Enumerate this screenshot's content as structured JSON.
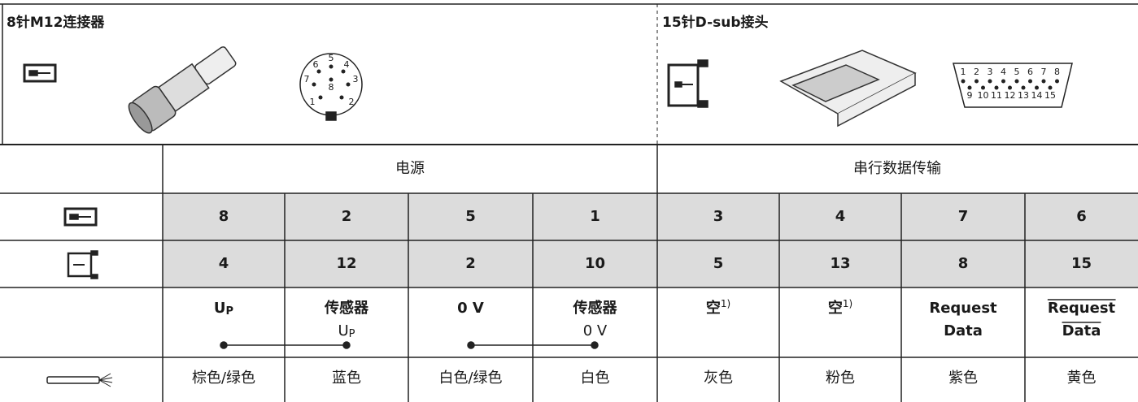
{
  "header": {
    "left_title": "8针M12连接器",
    "right_title": "15针D-sub接头"
  },
  "m12_pinout": [
    "6",
    "5",
    "4",
    "7",
    "8",
    "3",
    "1",
    "2"
  ],
  "dsub_pinout": {
    "row1": [
      "1",
      "2",
      "3",
      "4",
      "5",
      "6",
      "7",
      "8"
    ],
    "row2": [
      "9",
      "10",
      "11",
      "12",
      "13",
      "14",
      "15"
    ]
  },
  "table": {
    "groups": [
      "电源",
      "串行数据传输"
    ],
    "m12_pins": [
      "8",
      "2",
      "5",
      "1",
      "3",
      "4",
      "7",
      "6"
    ],
    "dsub_pins": [
      "4",
      "12",
      "2",
      "10",
      "5",
      "13",
      "8",
      "15"
    ],
    "signals": [
      {
        "name": "U",
        "subscript": "P"
      },
      {
        "name": "传感器",
        "line2": "U",
        "line2_subscript": "P"
      },
      {
        "name": "0 V"
      },
      {
        "name": "传感器",
        "line2": "0 V"
      },
      {
        "name": "空",
        "footnote": "1)"
      },
      {
        "name": "空",
        "footnote": "1)"
      },
      {
        "name": "Request",
        "line2": "Data"
      },
      {
        "name": "Request",
        "line2": "Data",
        "overline": true
      }
    ],
    "colors": [
      "棕色/绿色",
      "蓝色",
      "白色/绿色",
      "白色",
      "灰色",
      "粉色",
      "紫色",
      "黄色"
    ]
  }
}
